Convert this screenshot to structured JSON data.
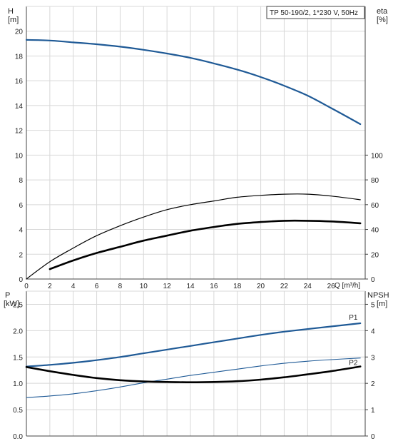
{
  "chart_data": [
    {
      "id": "head",
      "type": "line",
      "legend_box": "TP 50-190/2, 1*230 V, 50Hz",
      "ylabel_left": [
        "H",
        "[m]"
      ],
      "ylabel_right": [
        "eta",
        "[%]"
      ],
      "xlabel": "Q [m³/h]",
      "xlim": [
        0,
        28
      ],
      "x_ticks": [
        0,
        2,
        4,
        6,
        8,
        10,
        12,
        14,
        16,
        18,
        20,
        22,
        24,
        26
      ],
      "ylim_left": [
        0,
        22
      ],
      "y_ticks_left": [
        0,
        2,
        4,
        6,
        8,
        10,
        12,
        14,
        16,
        18,
        20
      ],
      "ylim_right": [
        0,
        220
      ],
      "y_ticks_right": [
        0,
        20,
        40,
        60,
        80,
        100
      ],
      "grid": true,
      "colors": {
        "head": "#1f5a96",
        "eta": "#000000",
        "grid": "#d8d8d8",
        "axis": "#444444"
      },
      "series": [
        {
          "key": "head_H",
          "axis": "left",
          "x": [
            0,
            2,
            4,
            6,
            8,
            10,
            12,
            14,
            16,
            18,
            20,
            22,
            24,
            26,
            28.5
          ],
          "y": [
            19.3,
            19.25,
            19.1,
            18.95,
            18.75,
            18.5,
            18.2,
            17.85,
            17.4,
            16.9,
            16.3,
            15.6,
            14.8,
            13.8,
            12.5
          ]
        },
        {
          "key": "eta_curve1",
          "axis": "right",
          "x": [
            0,
            2,
            4,
            6,
            8,
            10,
            12,
            14,
            16,
            18,
            20,
            22,
            24,
            26,
            28.5
          ],
          "y": [
            0,
            14,
            25,
            35,
            43,
            50,
            56,
            60,
            63,
            66,
            67.5,
            68.5,
            68.5,
            67,
            64
          ]
        },
        {
          "key": "eta_curve2",
          "axis": "right",
          "x": [
            2,
            4,
            6,
            8,
            10,
            12,
            14,
            16,
            18,
            20,
            22,
            24,
            26,
            28.5
          ],
          "y": [
            8,
            15,
            21,
            26,
            31,
            35,
            39,
            42,
            44.5,
            46,
            47,
            47,
            46.5,
            45
          ]
        }
      ]
    },
    {
      "id": "power",
      "type": "line",
      "ylabel_left": [
        "P",
        "[kW]"
      ],
      "ylabel_right": [
        "NPSH",
        "[m]"
      ],
      "xlim": [
        0,
        28
      ],
      "x_ticks": [
        0,
        2,
        4,
        6,
        8,
        10,
        12,
        14,
        16,
        18,
        20,
        22,
        24,
        26
      ],
      "ylim_left": [
        0,
        2.75
      ],
      "y_ticks_left": [
        0.0,
        0.5,
        1.0,
        1.5,
        2.0,
        2.5
      ],
      "ylim_right": [
        0,
        5.5
      ],
      "y_ticks_right": [
        0,
        1,
        2,
        3,
        4,
        5
      ],
      "grid": true,
      "series": [
        {
          "name": "P1",
          "axis": "left",
          "color": "#1f5a96",
          "x": [
            0,
            2,
            4,
            6,
            8,
            10,
            12,
            14,
            16,
            18,
            20,
            22,
            24,
            26,
            28.5
          ],
          "y": [
            1.32,
            1.35,
            1.39,
            1.44,
            1.5,
            1.57,
            1.64,
            1.71,
            1.78,
            1.85,
            1.92,
            1.98,
            2.03,
            2.08,
            2.14
          ]
        },
        {
          "name": "P2",
          "axis": "left",
          "color": "#1f5a96",
          "x": [
            0,
            2,
            4,
            6,
            8,
            10,
            12,
            14,
            16,
            18,
            20,
            22,
            24,
            26,
            28.5
          ],
          "y": [
            0.73,
            0.76,
            0.8,
            0.86,
            0.93,
            1.01,
            1.08,
            1.15,
            1.21,
            1.27,
            1.33,
            1.38,
            1.42,
            1.45,
            1.48
          ]
        },
        {
          "key": "npsh",
          "axis": "right",
          "color": "#000000",
          "x": [
            0,
            2,
            4,
            6,
            8,
            10,
            12,
            14,
            16,
            18,
            20,
            22,
            24,
            26,
            28.5
          ],
          "y": [
            2.62,
            2.46,
            2.32,
            2.2,
            2.12,
            2.07,
            2.05,
            2.04,
            2.05,
            2.08,
            2.14,
            2.23,
            2.34,
            2.46,
            2.64
          ]
        }
      ]
    }
  ]
}
